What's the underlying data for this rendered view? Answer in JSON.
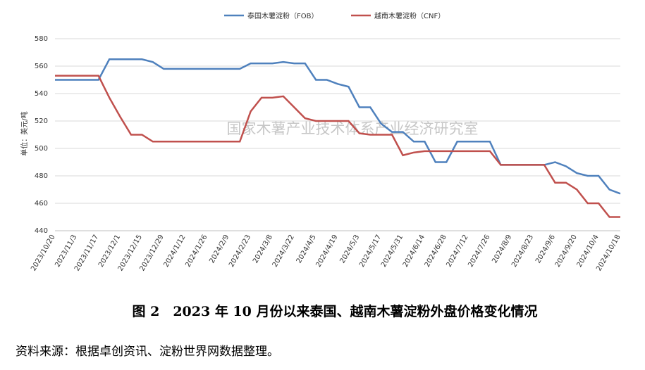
{
  "chart_data": {
    "type": "line",
    "y_label": "单位：美元/吨",
    "watermark": "国家木薯产业技术体系产业经济研究室",
    "caption": "图 2　2023 年 10 月份以来泰国、越南木薯淀粉外盘价格变化情况",
    "source": "资料来源：根据卓创资讯、淀粉世界网数据整理。",
    "categories": [
      "2023/10/20",
      null,
      "2023/11/3",
      null,
      "2023/11/17",
      null,
      "2023/12/1",
      null,
      "2023/12/15",
      null,
      "2023/12/29",
      null,
      "2024/1/12",
      null,
      "2024/1/26",
      null,
      "2024/2/9",
      null,
      "2024/2/23",
      null,
      "2024/3/8",
      null,
      "2024/3/22",
      null,
      "2024/4/5",
      null,
      "2024/4/19",
      null,
      "2024/5/3",
      null,
      "2024/5/17",
      null,
      "2024/5/31",
      null,
      "2024/6/14",
      null,
      "2024/6/28",
      null,
      "2024/7/12",
      null,
      "2024/7/26",
      null,
      "2024/8/9",
      null,
      "2024/8/23",
      null,
      "2024/9/6",
      null,
      "2024/9/20",
      null,
      "2024/10/4",
      null,
      "2024/10/18"
    ],
    "series": [
      {
        "name": "泰国木薯淀粉（FOB）",
        "color": "#4f81bd",
        "values": [
          550,
          550,
          550,
          550,
          550,
          565,
          565,
          565,
          565,
          563,
          558,
          558,
          558,
          558,
          558,
          558,
          558,
          558,
          562,
          562,
          562,
          563,
          562,
          562,
          550,
          550,
          547,
          545,
          530,
          530,
          518,
          512,
          512,
          505,
          505,
          490,
          490,
          505,
          505,
          505,
          505,
          488,
          488,
          488,
          488,
          488,
          490,
          487,
          482,
          480,
          480,
          470,
          467
        ]
      },
      {
        "name": "越南木薯淀粉（CNF）",
        "color": "#c0504d",
        "values": [
          553,
          553,
          553,
          553,
          553,
          537,
          523,
          510,
          510,
          505,
          505,
          505,
          505,
          505,
          505,
          505,
          505,
          505,
          527,
          537,
          537,
          538,
          530,
          522,
          520,
          520,
          520,
          520,
          511,
          510,
          510,
          510,
          495,
          497,
          498,
          498,
          498,
          498,
          498,
          498,
          498,
          488,
          488,
          488,
          488,
          488,
          475,
          475,
          470,
          460,
          460,
          450,
          450
        ]
      }
    ],
    "ylim": [
      440,
      580
    ],
    "yticks": [
      440,
      460,
      480,
      500,
      520,
      540,
      560,
      580
    ],
    "grid": true
  }
}
